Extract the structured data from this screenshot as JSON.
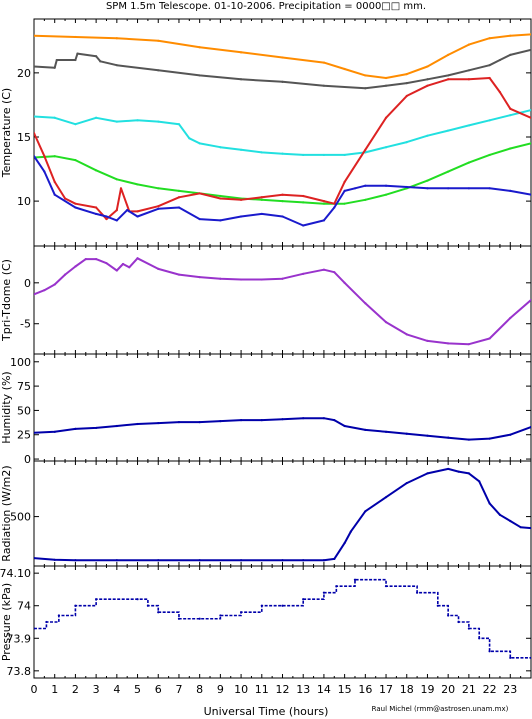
{
  "title": "SPM 1.5m Telescope. 01-10-2006. Precipitation = 0000□□ mm.",
  "credit": "Raul Michel (rmm@astrosen.unam.mx)",
  "colors": {
    "orange": "#ff8c00",
    "gray": "#555555",
    "cyan": "#22e0e0",
    "green": "#22dd22",
    "red": "#dd2222",
    "blue": "#1a1acc",
    "purple": "#9933cc",
    "navy": "#0000aa"
  },
  "chart_data": {
    "type": "line",
    "x_axis": {
      "label": "Universal Time (hours)",
      "range": [
        0,
        24
      ],
      "ticks": [
        "0",
        "1",
        "2",
        "3",
        "4",
        "5",
        "6",
        "7",
        "8",
        "9",
        "10",
        "11",
        "12",
        "13",
        "14",
        "15",
        "16",
        "17",
        "18",
        "19",
        "20",
        "21",
        "22",
        "23"
      ]
    },
    "panels": [
      {
        "name": "temperature",
        "ylabel": "Temperature (C)",
        "ylim": [
          6.5,
          24.2
        ],
        "yticks": [
          "10",
          "15",
          "20"
        ],
        "ytick_values": [
          10,
          15,
          20
        ],
        "series": [
          {
            "color": "orange",
            "style": "line",
            "x": [
              0,
              2,
              4,
              6,
              8,
              10,
              12,
              14,
              15,
              16,
              17,
              18,
              19,
              20,
              21,
              22,
              23,
              24
            ],
            "y": [
              22.9,
              22.8,
              22.7,
              22.5,
              22.0,
              21.6,
              21.2,
              20.8,
              20.3,
              19.8,
              19.6,
              19.9,
              20.5,
              21.4,
              22.2,
              22.7,
              22.9,
              23.0
            ]
          },
          {
            "color": "gray",
            "style": "line",
            "x": [
              0,
              1,
              1.1,
              2,
              2.1,
              3,
              3.2,
              4,
              6,
              8,
              10,
              12,
              14,
              16,
              17,
              18,
              19,
              20,
              21,
              22,
              22.5,
              23,
              24
            ],
            "y": [
              20.5,
              20.4,
              21.0,
              21.0,
              21.5,
              21.3,
              20.9,
              20.6,
              20.2,
              19.8,
              19.5,
              19.3,
              19.0,
              18.8,
              19.0,
              19.2,
              19.5,
              19.8,
              20.2,
              20.6,
              21.0,
              21.4,
              21.8
            ]
          },
          {
            "color": "cyan",
            "style": "line",
            "x": [
              0,
              1,
              2,
              3,
              4,
              5,
              6,
              7,
              7.5,
              8,
              9,
              10,
              11,
              12,
              13,
              14,
              15,
              16,
              17,
              18,
              19,
              20,
              21,
              22,
              23,
              24
            ],
            "y": [
              16.6,
              16.5,
              16.0,
              16.5,
              16.2,
              16.3,
              16.2,
              16.0,
              14.9,
              14.5,
              14.2,
              14.0,
              13.8,
              13.7,
              13.6,
              13.6,
              13.6,
              13.8,
              14.2,
              14.6,
              15.1,
              15.5,
              15.9,
              16.3,
              16.7,
              17.1
            ]
          },
          {
            "color": "green",
            "style": "line",
            "x": [
              0,
              1,
              2,
              3,
              4,
              5,
              6,
              7,
              8,
              9,
              10,
              11,
              12,
              13,
              14,
              15,
              16,
              17,
              18,
              19,
              20,
              21,
              22,
              23,
              24
            ],
            "y": [
              13.4,
              13.5,
              13.2,
              12.4,
              11.7,
              11.3,
              11.0,
              10.8,
              10.6,
              10.4,
              10.2,
              10.1,
              10.0,
              9.9,
              9.8,
              9.8,
              10.1,
              10.5,
              11.0,
              11.6,
              12.3,
              13.0,
              13.6,
              14.1,
              14.5
            ]
          },
          {
            "color": "red",
            "style": "line",
            "x": [
              0,
              0.5,
              1,
              1.5,
              2,
              3,
              3.5,
              4,
              4.2,
              4.6,
              5,
              6,
              7,
              8,
              9,
              10,
              11,
              12,
              13,
              14,
              14.5,
              15,
              16,
              17,
              18,
              19,
              20,
              21,
              22,
              22.5,
              23,
              24
            ],
            "y": [
              15.3,
              13.5,
              11.5,
              10.2,
              9.8,
              9.5,
              8.6,
              9.3,
              11.0,
              9.2,
              9.2,
              9.6,
              10.3,
              10.6,
              10.2,
              10.1,
              10.3,
              10.5,
              10.4,
              10.0,
              9.8,
              11.5,
              14.0,
              16.5,
              18.2,
              19.0,
              19.5,
              19.5,
              19.6,
              18.5,
              17.2,
              16.5
            ]
          },
          {
            "color": "blue",
            "style": "line",
            "x": [
              0,
              0.5,
              1,
              2,
              3,
              3.5,
              4,
              4.5,
              5,
              6,
              7,
              8,
              9,
              10,
              11,
              12,
              13,
              14,
              14.5,
              15,
              15.5,
              16,
              17,
              18,
              19,
              20,
              21,
              22,
              23,
              24
            ],
            "y": [
              13.5,
              12.3,
              10.5,
              9.5,
              9.0,
              8.8,
              8.5,
              9.3,
              8.8,
              9.4,
              9.5,
              8.6,
              8.5,
              8.8,
              9.0,
              8.8,
              8.1,
              8.5,
              9.5,
              10.8,
              11.0,
              11.2,
              11.2,
              11.1,
              11.0,
              11.0,
              11.0,
              11.0,
              10.8,
              10.5
            ]
          }
        ]
      },
      {
        "name": "tpri-tdome",
        "ylabel": "Tpri-Tdome (C)",
        "ylim": [
          -8.7,
          4.5
        ],
        "yticks": [
          "0",
          "-5"
        ],
        "ytick_values": [
          0,
          -5
        ],
        "series": [
          {
            "color": "purple",
            "style": "line",
            "x": [
              0,
              0.5,
              1,
              1.5,
              2,
              2.5,
              3,
              3.5,
              4,
              4.3,
              4.6,
              5,
              6,
              7,
              8,
              9,
              10,
              11,
              12,
              13,
              14,
              14.5,
              15,
              16,
              17,
              18,
              19,
              20,
              21,
              22,
              23,
              24
            ],
            "y": [
              -1.4,
              -0.9,
              -0.2,
              1.0,
              2.0,
              2.9,
              2.9,
              2.4,
              1.5,
              2.3,
              1.9,
              3.0,
              1.7,
              1.0,
              0.7,
              0.5,
              0.4,
              0.4,
              0.5,
              1.1,
              1.6,
              1.3,
              0.0,
              -2.5,
              -4.8,
              -6.3,
              -7.1,
              -7.4,
              -7.5,
              -6.8,
              -4.3,
              -2.1
            ]
          }
        ]
      },
      {
        "name": "humidity",
        "ylabel": "Humidity (%)",
        "ylim": [
          -2,
          108
        ],
        "yticks": [
          "0",
          "25",
          "50",
          "75",
          "100"
        ],
        "ytick_values": [
          0,
          25,
          50,
          75,
          100
        ],
        "series": [
          {
            "color": "navy",
            "style": "line",
            "x": [
              0,
              1,
              2,
              3,
              4,
              5,
              6,
              7,
              8,
              9,
              10,
              11,
              12,
              13,
              14,
              14.5,
              15,
              16,
              17,
              18,
              19,
              20,
              21,
              22,
              23,
              24
            ],
            "y": [
              27,
              28,
              31,
              32,
              34,
              36,
              37,
              38,
              38,
              39,
              40,
              40,
              41,
              42,
              42,
              40,
              34,
              30,
              28,
              26,
              24,
              22,
              20,
              21,
              25,
              33
            ]
          }
        ]
      },
      {
        "name": "radiation",
        "ylabel": "Radiation (W/m2)",
        "ylim": [
          -60,
          1130
        ],
        "yticks": [
          "500"
        ],
        "ytick_values": [
          500
        ],
        "series": [
          {
            "color": "navy",
            "style": "line",
            "x": [
              0,
              1,
              2,
              4,
              6,
              8,
              10,
              12,
              13,
              14,
              14.5,
              15,
              15.3,
              16,
              17,
              18,
              19,
              20,
              20.5,
              21,
              21.5,
              22,
              22.5,
              23,
              23.5,
              24
            ],
            "y": [
              30,
              10,
              5,
              5,
              5,
              5,
              5,
              5,
              5,
              5,
              20,
              200,
              330,
              560,
              720,
              880,
              990,
              1040,
              1010,
              990,
              900,
              650,
              520,
              450,
              380,
              370
            ]
          }
        ]
      },
      {
        "name": "pressure",
        "ylabel": "Pressure (kPa)",
        "ylim": [
          73.778,
          74.122
        ],
        "yticks": [
          "73.8",
          "73.9",
          "74",
          "74.10"
        ],
        "ytick_values": [
          73.8,
          73.9,
          74.0,
          74.1
        ],
        "series": [
          {
            "color": "navy",
            "style": "steps",
            "x": [
              0,
              0.6,
              1.2,
              2,
              3,
              5,
              5.5,
              6,
              7,
              8,
              9,
              10,
              11,
              12,
              13,
              14,
              14.6,
              15.5,
              17,
              18.5,
              19.5,
              20,
              20.5,
              21,
              21.5,
              22,
              23,
              24
            ],
            "y": [
              73.93,
              73.95,
              73.97,
              74.0,
              74.02,
              74.02,
              74.0,
              73.98,
              73.96,
              73.96,
              73.97,
              73.98,
              74.0,
              74.0,
              74.02,
              74.04,
              74.06,
              74.08,
              74.06,
              74.04,
              74.0,
              73.97,
              73.95,
              73.93,
              73.9,
              73.86,
              73.84,
              73.84
            ]
          }
        ]
      }
    ]
  }
}
